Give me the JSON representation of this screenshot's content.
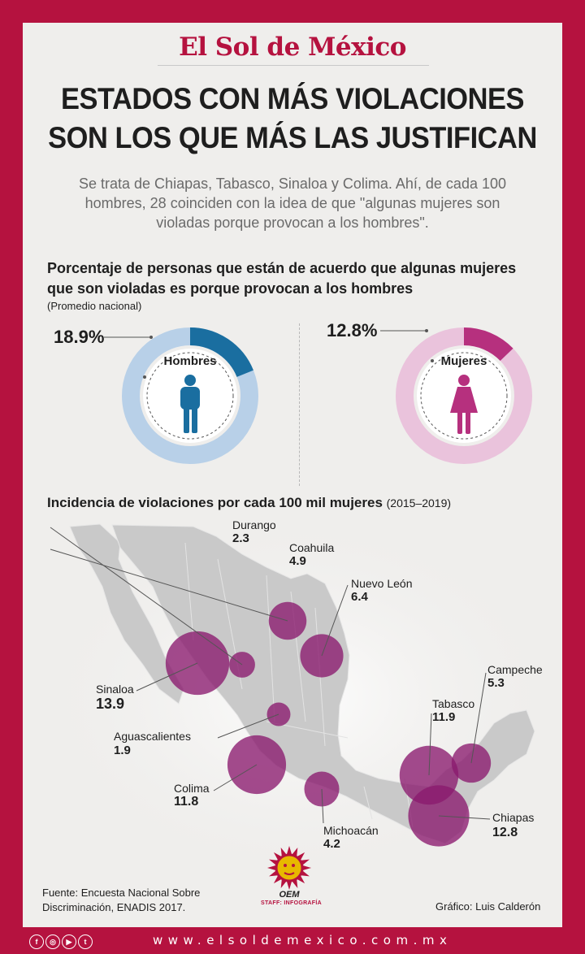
{
  "masthead": {
    "logo_text": "El Sol de México"
  },
  "headline": {
    "line1": "ESTADOS CON MÁS VIOLACIONES",
    "line2": "SON LOS QUE MÁS LAS JUSTIFICAN"
  },
  "subtitle": "Se trata de Chiapas, Tabasco, Sinaloa y Colima. Ahí, de cada 100 hombres, 28 coinciden con la idea de que \"algunas mujeres son violadas porque provocan a los hombres\".",
  "question": {
    "text": "Porcentaje de personas que están de acuerdo que algunas mujeres que son violadas es porque provocan a los hombres",
    "note": "(Promedio nacional)"
  },
  "donuts": [
    {
      "label": "Hombres",
      "percent_text": "18.9%",
      "value": 18.9,
      "color": "#1a6ea0",
      "track_color": "#b8d0e8",
      "icon": "man-icon"
    },
    {
      "label": "Mujeres",
      "percent_text": "12.8%",
      "value": 12.8,
      "color": "#b6307e",
      "track_color": "#eac3dc",
      "icon": "woman-icon"
    }
  ],
  "map_section": {
    "title": "Incidencia de violaciones por cada 100 mil mujeres",
    "period": "(2015–2019)",
    "bubble_color": "#8b1a6e",
    "states": [
      {
        "name": "Durango",
        "value": "2.3"
      },
      {
        "name": "Coahuila",
        "value": "4.9"
      },
      {
        "name": "Nuevo León",
        "value": "6.4"
      },
      {
        "name": "Sinaloa",
        "value": "13.9"
      },
      {
        "name": "Campeche",
        "value": "5.3"
      },
      {
        "name": "Tabasco",
        "value": "11.9"
      },
      {
        "name": "Aguascalientes",
        "value": "1.9"
      },
      {
        "name": "Colima",
        "value": "11.8"
      },
      {
        "name": "Chiapas",
        "value": "12.8"
      },
      {
        "name": "Michoacán",
        "value": "4.2"
      }
    ]
  },
  "footer": {
    "source": "Fuente: Encuesta Nacional Sobre Discriminación, ENADIS 2017.",
    "credit": "Gráfico: Luis Calderón",
    "logo_text": "OEM",
    "staff": "STAFF: INFOGRAFÍA",
    "url": "www.elsoldemexico.com.mx",
    "social_icons": [
      "facebook-icon",
      "instagram-icon",
      "youtube-icon",
      "twitter-icon"
    ]
  }
}
